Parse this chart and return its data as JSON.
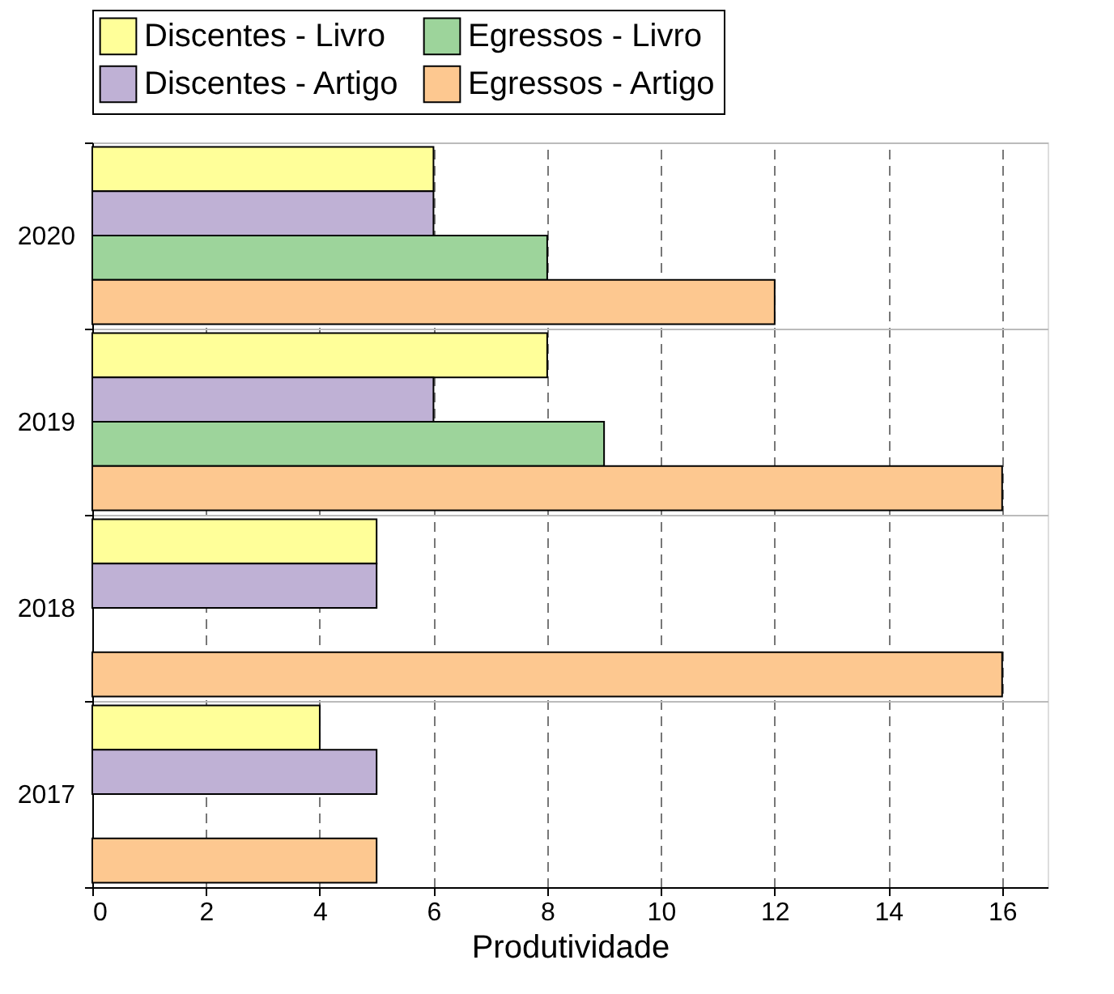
{
  "chart_data": {
    "type": "bar",
    "orientation": "horizontal",
    "xlabel": "Produtividade",
    "categories": [
      "2020",
      "2019",
      "2018",
      "2017"
    ],
    "series": [
      {
        "name": "Discentes - Livro",
        "color": "#ffff99",
        "values": [
          6,
          8,
          5,
          4
        ]
      },
      {
        "name": "Discentes - Artigo",
        "color": "#bfb1d5",
        "values": [
          6,
          6,
          5,
          5
        ]
      },
      {
        "name": "Egressos - Livro",
        "color": "#9dd49b",
        "values": [
          8,
          9,
          null,
          null
        ]
      },
      {
        "name": "Egressos - Artigo",
        "color": "#fdc890",
        "values": [
          12,
          16,
          16,
          5
        ]
      }
    ],
    "xlim": [
      0,
      16.8
    ],
    "xticks": [
      0,
      2,
      4,
      6,
      8,
      10,
      12,
      14,
      16
    ],
    "grid": true,
    "legend": "top"
  }
}
